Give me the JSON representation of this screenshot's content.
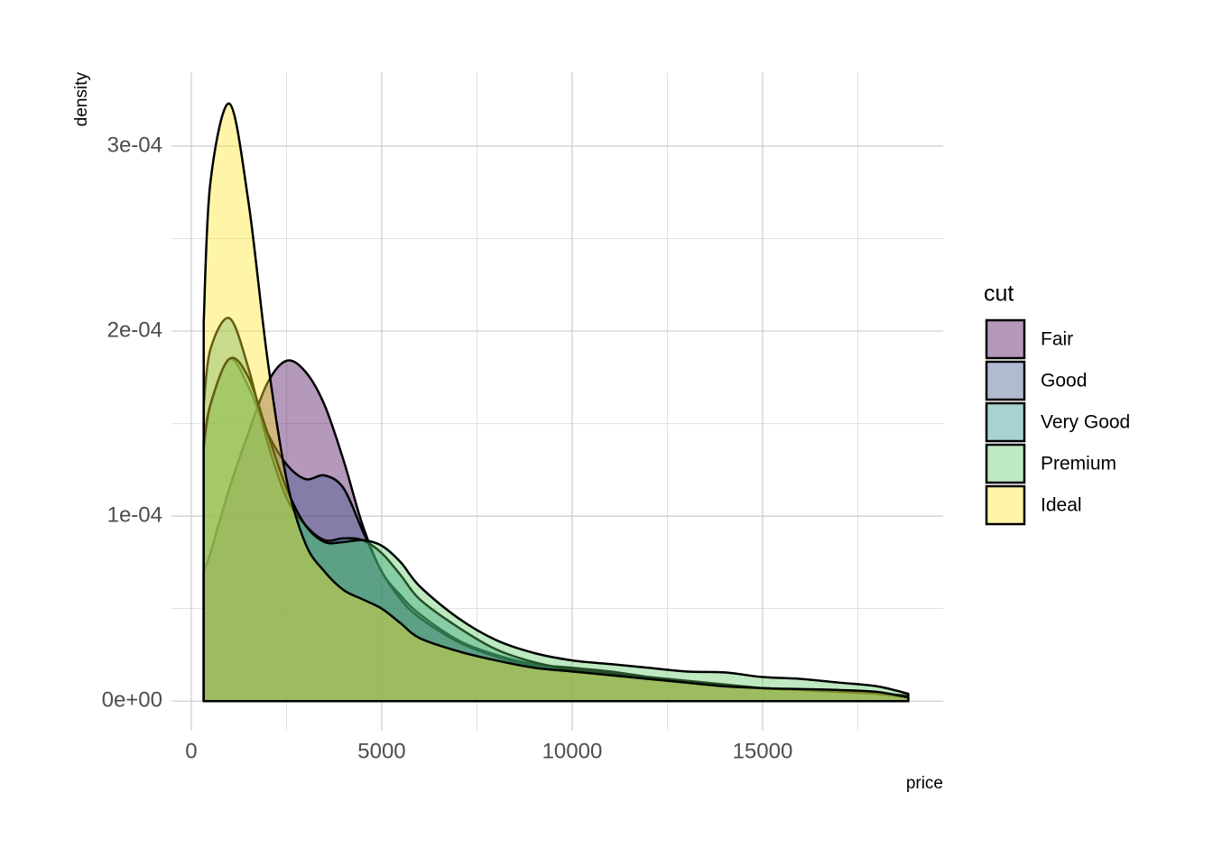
{
  "chart_data": {
    "type": "density",
    "x_label": "price",
    "y_label": "density",
    "legend_title": "cut",
    "xlim": [
      -520,
      19740
    ],
    "ylim": [
      -1.6e-05,
      0.00034
    ],
    "xticks": [
      0,
      5000,
      10000,
      15000
    ],
    "yticks": [
      {
        "value": 0,
        "label": "0e+00"
      },
      {
        "value": 0.0001,
        "label": "1e-04"
      },
      {
        "value": 0.0002,
        "label": "2e-04"
      },
      {
        "value": 0.0003,
        "label": "3e-04"
      }
    ],
    "grid": true,
    "legend": "right",
    "x": [
      326,
      500,
      1000,
      1500,
      2000,
      2500,
      3000,
      3500,
      4000,
      4500,
      5000,
      5500,
      6000,
      7000,
      8000,
      9000,
      10000,
      11000,
      12000,
      13000,
      14000,
      15000,
      16000,
      17000,
      18000,
      18823
    ],
    "series": [
      {
        "name": "Fair",
        "color": "#440154",
        "values": [
          7e-05,
          8e-05,
          0.000115,
          0.000145,
          0.000172,
          0.000184,
          0.000178,
          0.00016,
          0.00013,
          9.5e-05,
          7e-05,
          5.7e-05,
          4.7e-05,
          3.3e-05,
          2.5e-05,
          2e-05,
          1.8e-05,
          1.6e-05,
          1.3e-05,
          1e-05,
          8e-06,
          7e-06,
          6e-06,
          5e-06,
          4e-06,
          3e-06
        ]
      },
      {
        "name": "Good",
        "color": "#3b528b",
        "values": [
          0.00014,
          0.00016,
          0.000185,
          0.00017,
          0.000145,
          0.000128,
          0.00012,
          0.000122,
          0.000115,
          9.2e-05,
          7e-05,
          5.5e-05,
          4.5e-05,
          3.2e-05,
          2.4e-05,
          1.9e-05,
          1.6e-05,
          1.4e-05,
          1.2e-05,
          1e-05,
          8e-06,
          7e-06,
          6e-06,
          5e-06,
          4e-06,
          2e-06
        ]
      },
      {
        "name": "Very Good",
        "color": "#21908c",
        "values": [
          0.00016,
          0.00019,
          0.000207,
          0.00018,
          0.00014,
          0.00011,
          9.5e-05,
          8.7e-05,
          8.8e-05,
          8.7e-05,
          8e-05,
          6.8e-05,
          5.5e-05,
          4e-05,
          2.8e-05,
          2.1e-05,
          1.7e-05,
          1.5e-05,
          1.3e-05,
          1.1e-05,
          9e-06,
          7e-06,
          6e-06,
          5e-06,
          4e-06,
          2e-06
        ]
      },
      {
        "name": "Premium",
        "color": "#5dc863",
        "values": [
          0.000137,
          0.00016,
          0.000185,
          0.000175,
          0.000145,
          0.000115,
          9.5e-05,
          8.6e-05,
          8.6e-05,
          8.7e-05,
          8.4e-05,
          7.5e-05,
          6.2e-05,
          4.5e-05,
          3.3e-05,
          2.6e-05,
          2.2e-05,
          2e-05,
          1.8e-05,
          1.6e-05,
          1.55e-05,
          1.3e-05,
          1.2e-05,
          1e-05,
          8e-06,
          4e-06
        ]
      },
      {
        "name": "Ideal",
        "color": "#fde725",
        "values": [
          0.000205,
          0.00028,
          0.000323,
          0.00027,
          0.000185,
          0.00012,
          8.5e-05,
          7e-05,
          6e-05,
          5.5e-05,
          5e-05,
          4.2e-05,
          3.4e-05,
          2.7e-05,
          2.2e-05,
          1.8e-05,
          1.6e-05,
          1.4e-05,
          1.2e-05,
          1e-05,
          8e-06,
          7e-06,
          6.5e-06,
          6e-06,
          5e-06,
          2e-06
        ]
      }
    ]
  }
}
